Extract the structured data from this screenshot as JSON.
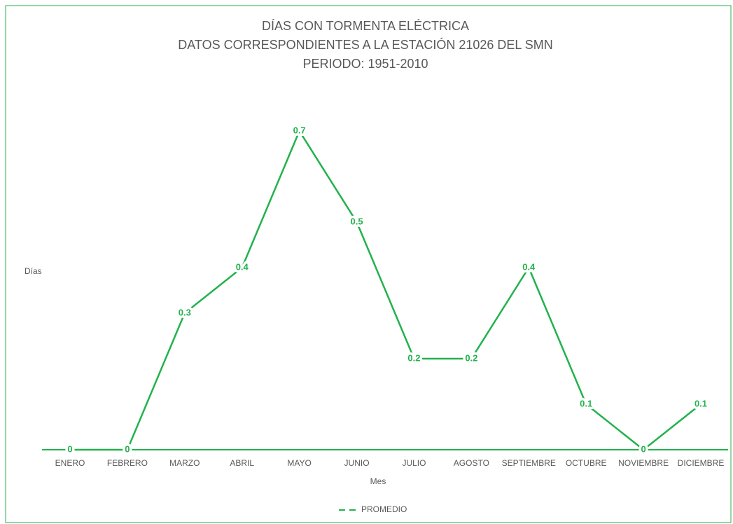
{
  "chart_data": {
    "type": "line",
    "title": [
      "DÍAS CON TORMENTA ELÉCTRICA",
      "DATOS CORRESPONDIENTES A LA ESTACIÓN 21026 DEL SMN",
      "PERIODO: 1951-2010"
    ],
    "x_label": "Mes",
    "y_label": "Días",
    "categories": [
      "ENERO",
      "FEBRERO",
      "MARZO",
      "ABRIL",
      "MAYO",
      "JUNIO",
      "JULIO",
      "AGOSTO",
      "SEPTIEMBRE",
      "OCTUBRE",
      "NOVIEMBRE",
      "DICIEMBRE"
    ],
    "series": [
      {
        "name": "PROMEDIO",
        "color": "#22b24c",
        "values": [
          0,
          0,
          0.3,
          0.4,
          0.7,
          0.5,
          0.2,
          0.2,
          0.4,
          0.1,
          0,
          0.1
        ]
      }
    ],
    "ylim": [
      0,
      0.7
    ],
    "legend": "bottom",
    "data_labels": true
  }
}
